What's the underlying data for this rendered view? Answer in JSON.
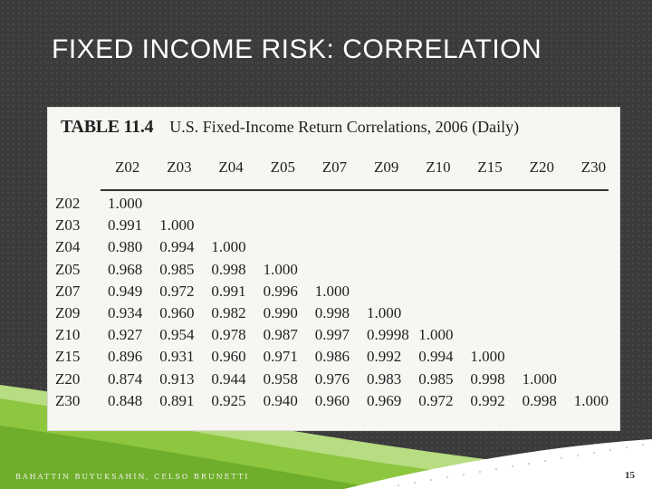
{
  "slide": {
    "title": "FIXED INCOME RISK: CORRELATION",
    "footer": "BAHATTIN BUYUKSAHIN, CELSO BRUNETTI",
    "page_number": "15"
  },
  "table": {
    "number": "TABLE 11.4",
    "description": "U.S. Fixed-Income Return Correlations, 2006 (Daily)",
    "columns": [
      "Z02",
      "Z03",
      "Z04",
      "Z05",
      "Z07",
      "Z09",
      "Z10",
      "Z15",
      "Z20",
      "Z30"
    ],
    "rows": [
      {
        "label": "Z02",
        "values": [
          "1.000"
        ]
      },
      {
        "label": "Z03",
        "values": [
          "0.991",
          "1.000"
        ]
      },
      {
        "label": "Z04",
        "values": [
          "0.980",
          "0.994",
          "1.000"
        ]
      },
      {
        "label": "Z05",
        "values": [
          "0.968",
          "0.985",
          "0.998",
          "1.000"
        ]
      },
      {
        "label": "Z07",
        "values": [
          "0.949",
          "0.972",
          "0.991",
          "0.996",
          "1.000"
        ]
      },
      {
        "label": "Z09",
        "values": [
          "0.934",
          "0.960",
          "0.982",
          "0.990",
          "0.998",
          "1.000"
        ]
      },
      {
        "label": "Z10",
        "values": [
          "0.927",
          "0.954",
          "0.978",
          "0.987",
          "0.997",
          "0.9998",
          "1.000"
        ]
      },
      {
        "label": "Z15",
        "values": [
          "0.896",
          "0.931",
          "0.960",
          "0.971",
          "0.986",
          "0.992",
          "0.994",
          "1.000"
        ]
      },
      {
        "label": "Z20",
        "values": [
          "0.874",
          "0.913",
          "0.944",
          "0.958",
          "0.976",
          "0.983",
          "0.985",
          "0.998",
          "1.000"
        ]
      },
      {
        "label": "Z30",
        "values": [
          "0.848",
          "0.891",
          "0.925",
          "0.940",
          "0.960",
          "0.969",
          "0.972",
          "0.992",
          "0.998",
          "1.000"
        ]
      }
    ]
  },
  "colors": {
    "background": "#3b3b3b",
    "accent_green": "#8dc63f",
    "light_green": "#c5e19a"
  }
}
